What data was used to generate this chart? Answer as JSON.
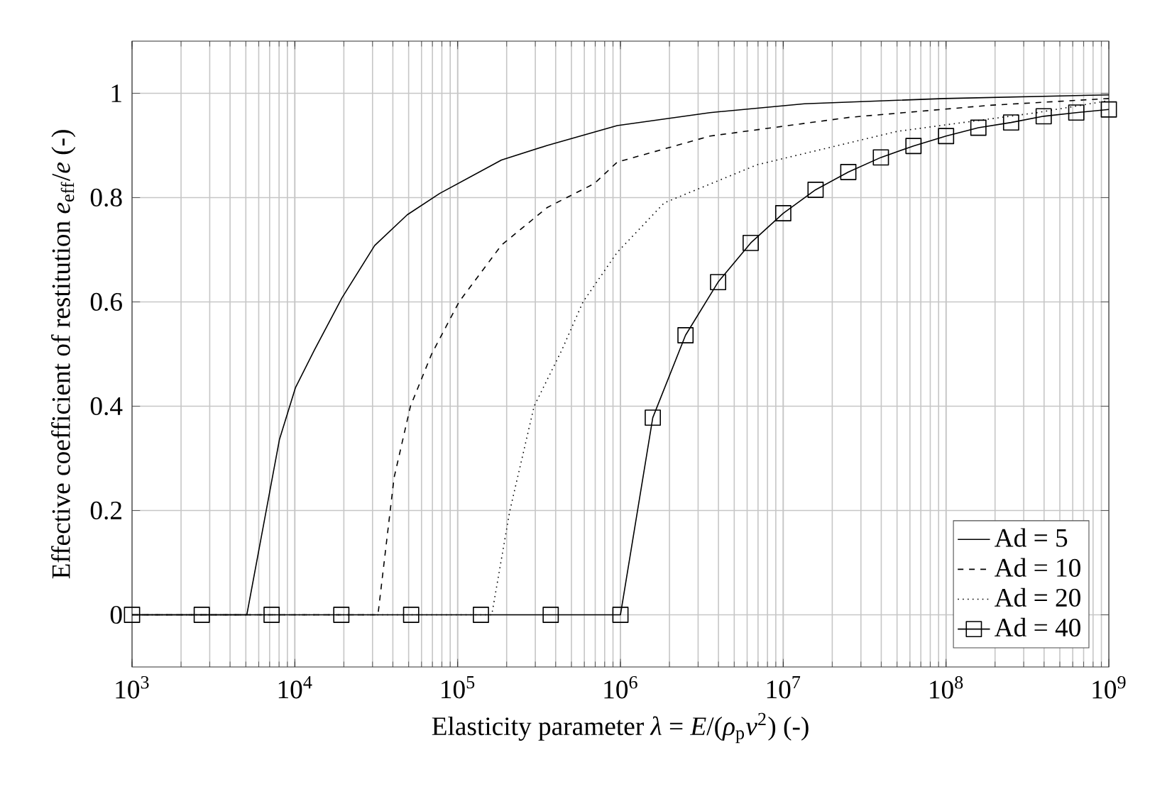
{
  "chart_data": {
    "type": "line",
    "xlabel": "Elasticity parameter *λ* = *E*/(*ρ*$_{p}$*v*$^{2}$) (-)",
    "ylabel": "Effective coefficient of restitution *e*$_{eff}$/*e* (-)",
    "log": "x",
    "grid": true,
    "legend": "bottom right",
    "xlim": [
      1000,
      1000000000
    ],
    "ylim": [
      -0.1,
      1.1
    ],
    "xticks": [
      {
        "value": 1000,
        "label": "10$^{3}$"
      },
      {
        "value": 10000,
        "label": "10$^{4}$"
      },
      {
        "value": 100000,
        "label": "10$^{5}$"
      },
      {
        "value": 1000000,
        "label": "10$^{6}$"
      },
      {
        "value": 10000000,
        "label": "10$^{7}$"
      },
      {
        "value": 100000000,
        "label": "10$^{8}$"
      },
      {
        "value": 1000000000,
        "label": "10$^{9}$"
      }
    ],
    "yticks": [
      0,
      0.2,
      0.4,
      0.6,
      0.8,
      1
    ],
    "series": [
      {
        "name": "Ad = 5",
        "color": "#000000",
        "line_style": "solid",
        "marker": "none",
        "x": [
          1000,
          5070,
          8040,
          10100,
          13200,
          19500,
          30900,
          49000,
          77600,
          186000,
          355000,
          955000,
          3550000,
          13500000,
          97700000,
          1000000000
        ],
        "values": [
          0,
          0,
          0.336,
          0.436,
          0.508,
          0.608,
          0.708,
          0.767,
          0.808,
          0.872,
          0.9,
          0.938,
          0.963,
          0.98,
          0.99,
          0.997
        ]
      },
      {
        "name": "Ad = 10",
        "color": "#000000",
        "line_style": "dashed",
        "marker": "none",
        "x": [
          1000,
          32400,
          40700,
          51300,
          69200,
          102000,
          186000,
          355000,
          692000,
          955000,
          3550000,
          25700000,
          186000000,
          1000000000
        ],
        "values": [
          0,
          0,
          0.263,
          0.4,
          0.5,
          0.6,
          0.709,
          0.781,
          0.827,
          0.868,
          0.918,
          0.954,
          0.977,
          0.99
        ]
      },
      {
        "name": "Ad = 20",
        "color": "#000000",
        "line_style": "dotted",
        "marker": "none",
        "x": [
          1000,
          162000,
          209000,
          295000,
          437000,
          589000,
          955000,
          1860000,
          6920000,
          50100000,
          363000000,
          1000000000
        ],
        "values": [
          0,
          0,
          0.199,
          0.4,
          0.508,
          0.6,
          0.695,
          0.79,
          0.863,
          0.927,
          0.963,
          0.986
        ]
      },
      {
        "name": "Ad = 40",
        "color": "#000000",
        "line_style": "solid",
        "marker": "square",
        "x": [
          1000,
          2680,
          7200,
          19300,
          51800,
          139000,
          373000,
          1000000,
          1580000,
          2510000,
          3980000,
          6310000,
          10000000,
          15800000,
          25100000,
          39800000,
          63100000,
          100000000,
          158000000,
          251000000,
          398000000,
          631000000,
          1000000000
        ],
        "values": [
          0,
          0,
          0,
          0,
          0,
          0,
          0,
          0,
          0.378,
          0.536,
          0.638,
          0.713,
          0.77,
          0.815,
          0.849,
          0.877,
          0.899,
          0.918,
          0.934,
          0.944,
          0.956,
          0.963,
          0.969
        ]
      }
    ]
  }
}
